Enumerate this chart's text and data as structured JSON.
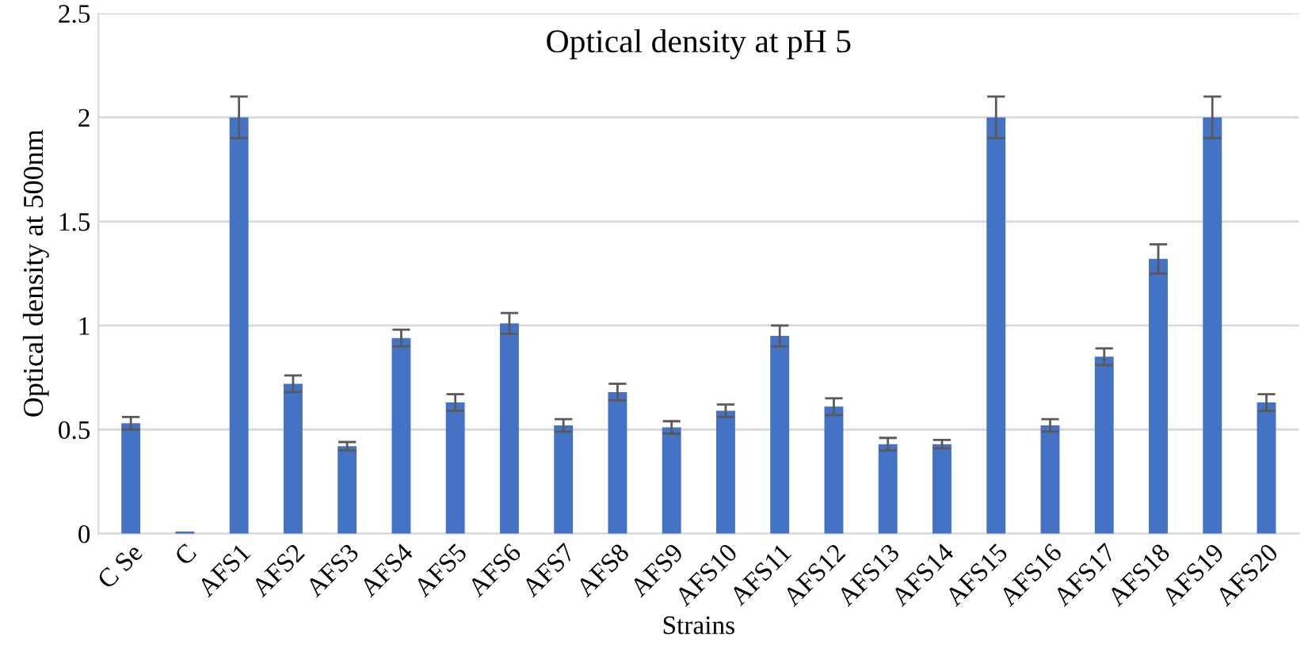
{
  "chart_data": {
    "type": "bar",
    "title": "Optical density at pH 5",
    "xlabel": "Strains",
    "ylabel": "Optical density at 500nm",
    "categories": [
      "C Se",
      "C",
      "AFS1",
      "AFS2",
      "AFS3",
      "AFS4",
      "AFS5",
      "AFS6",
      "AFS7",
      "AFS8",
      "AFS9",
      "AFS10",
      "AFS11",
      "AFS12",
      "AFS13",
      "AFS14",
      "AFS15",
      "AFS16",
      "AFS17",
      "AFS18",
      "AFS19",
      "AFS20"
    ],
    "values": [
      0.53,
      0.01,
      2.0,
      0.72,
      0.42,
      0.94,
      0.63,
      1.01,
      0.52,
      0.68,
      0.51,
      0.59,
      0.95,
      0.61,
      0.43,
      0.43,
      2.0,
      0.52,
      0.85,
      1.32,
      2.0,
      0.63
    ],
    "errors": [
      0.03,
      null,
      0.1,
      0.04,
      0.02,
      0.04,
      0.04,
      0.05,
      0.03,
      0.04,
      0.03,
      0.03,
      0.05,
      0.04,
      0.03,
      0.02,
      0.1,
      0.03,
      0.04,
      0.07,
      0.1,
      0.04
    ],
    "color": "#4472c4",
    "ylim": [
      0,
      2.5
    ],
    "yticks": [
      0,
      0.5,
      1,
      1.5,
      2,
      2.5
    ],
    "grid": "y"
  }
}
